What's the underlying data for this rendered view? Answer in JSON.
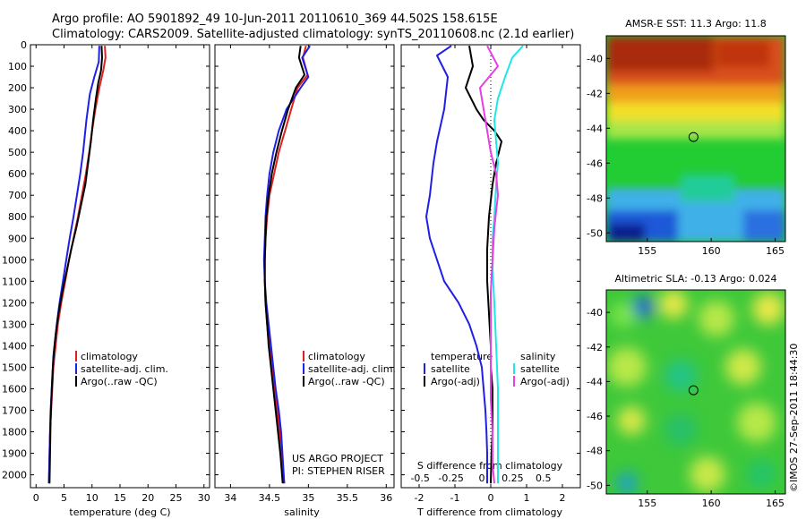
{
  "header": {
    "line1": "Argo profile: AO 5901892_49 10-Jun-2011 20110610_369 44.502S 158.615E",
    "line2": "Climatology: CARS2009. Satellite-adjusted climatology: synTS_20110608.nc (2.1d earlier)"
  },
  "project": {
    "line1": "US ARGO PROJECT",
    "line2": "PI: STEPHEN RISER"
  },
  "stamp": "©IMOS 27-Sep-2011 18:44:30",
  "colors": {
    "climatology": "#e11f1f",
    "satellite": "#1f1fe6",
    "argo": "#000000",
    "sal_satellite": "#22e6e6",
    "sal_argo": "#e63fe6",
    "dotted": "#000000"
  },
  "chart_data": [
    {
      "id": "temperature",
      "type": "line",
      "xlabel": "temperature (deg C)",
      "ylabel": "",
      "xlim": [
        -1,
        31
      ],
      "ylim": [
        2060,
        0
      ],
      "y_reversed": true,
      "xticks": [
        0,
        5,
        10,
        15,
        20,
        25,
        30
      ],
      "yticks": [
        0,
        100,
        200,
        300,
        400,
        500,
        600,
        700,
        800,
        900,
        1000,
        1100,
        1200,
        1300,
        1400,
        1500,
        1600,
        1700,
        1800,
        1900,
        2000
      ],
      "legend": [
        "climatology",
        "satellite-adj. clim.",
        "Argo(..raw -QC)"
      ],
      "legend_position": "lower-middle",
      "series": [
        {
          "name": "climatology",
          "color_key": "climatology",
          "x": [
            12.3,
            12.4,
            12.0,
            11.3,
            10.6,
            10.0,
            9.5,
            8.9,
            8.2,
            7.5,
            6.7,
            5.9,
            5.2,
            4.5,
            3.9,
            3.5,
            3.1,
            2.9,
            2.7,
            2.5,
            2.4,
            2.3
          ],
          "y": [
            5,
            60,
            120,
            200,
            300,
            400,
            500,
            600,
            700,
            800,
            900,
            1000,
            1100,
            1200,
            1300,
            1400,
            1500,
            1600,
            1700,
            1800,
            1900,
            2040
          ]
        },
        {
          "name": "satellite-adj. clim.",
          "color_key": "satellite",
          "x": [
            11.3,
            11.2,
            10.4,
            9.6,
            9.0,
            8.4,
            7.9,
            7.3,
            6.7,
            6.0,
            5.4,
            4.8,
            4.2,
            3.7,
            3.3,
            3.0,
            2.8,
            2.6,
            2.5,
            2.4,
            2.3
          ],
          "y": [
            5,
            80,
            150,
            230,
            350,
            500,
            600,
            700,
            800,
            900,
            1000,
            1100,
            1200,
            1300,
            1400,
            1500,
            1600,
            1700,
            1800,
            1900,
            2040
          ]
        },
        {
          "name": "Argo(..raw -QC)",
          "color_key": "argo",
          "x": [
            11.7,
            11.8,
            11.6,
            11.1,
            10.7,
            10.2,
            9.8,
            9.3,
            8.8,
            8.0,
            7.2,
            6.3,
            5.5,
            4.7,
            4.0,
            3.5,
            3.1,
            2.8,
            2.6,
            2.5,
            2.4
          ],
          "y": [
            5,
            60,
            120,
            180,
            250,
            350,
            450,
            550,
            650,
            750,
            850,
            950,
            1050,
            1150,
            1250,
            1350,
            1450,
            1600,
            1750,
            1900,
            2040
          ]
        }
      ]
    },
    {
      "id": "salinity",
      "type": "line",
      "xlabel": "salinity",
      "ylabel": "",
      "xlim": [
        33.8,
        36.1
      ],
      "ylim": [
        2060,
        0
      ],
      "y_reversed": true,
      "xticks": [
        34,
        34.5,
        35,
        35.5,
        36
      ],
      "legend": [
        "climatology",
        "satellite-adj. clim.",
        "Argo(..raw -QC)"
      ],
      "legend_position": "lower-middle",
      "series": [
        {
          "name": "climatology",
          "color_key": "climatology",
          "x": [
            34.97,
            34.93,
            34.99,
            34.86,
            34.78,
            34.7,
            34.62,
            34.56,
            34.5,
            34.47,
            34.45,
            34.44,
            34.44,
            34.45,
            34.47,
            34.5,
            34.53,
            34.57,
            34.6,
            34.63,
            34.66,
            34.69
          ],
          "y": [
            5,
            60,
            140,
            200,
            300,
            400,
            500,
            600,
            700,
            800,
            900,
            1000,
            1100,
            1200,
            1300,
            1400,
            1500,
            1600,
            1700,
            1800,
            1900,
            2040
          ]
        },
        {
          "name": "satellite-adj. clim.",
          "color_key": "satellite",
          "x": [
            35.02,
            34.92,
            35.0,
            34.9,
            34.72,
            34.62,
            34.55,
            34.5,
            34.47,
            34.45,
            34.44,
            34.43,
            34.44,
            34.46,
            34.49,
            34.52,
            34.55,
            34.58,
            34.62,
            34.65,
            34.69
          ],
          "y": [
            5,
            60,
            150,
            200,
            300,
            400,
            500,
            600,
            700,
            800,
            900,
            1000,
            1100,
            1200,
            1300,
            1400,
            1500,
            1600,
            1700,
            1800,
            2040
          ]
        },
        {
          "name": "Argo(..raw -QC)",
          "color_key": "argo",
          "x": [
            34.9,
            34.88,
            34.95,
            34.84,
            34.74,
            34.66,
            34.59,
            34.53,
            34.49,
            34.46,
            34.45,
            34.44,
            34.44,
            34.45,
            34.47,
            34.49,
            34.52,
            34.55,
            34.58,
            34.61,
            34.64,
            34.67
          ],
          "y": [
            5,
            60,
            140,
            200,
            300,
            400,
            500,
            600,
            700,
            800,
            900,
            1000,
            1100,
            1200,
            1300,
            1400,
            1500,
            1600,
            1700,
            1800,
            1900,
            2040
          ]
        }
      ]
    },
    {
      "id": "difference",
      "type": "line",
      "xlabel": "T difference from climatology",
      "xlabel_top": "S difference from climatology",
      "xlim": [
        -2.5,
        2.5
      ],
      "ylim": [
        2060,
        0
      ],
      "y_reversed": true,
      "xticks": [
        -2,
        -1,
        0,
        1,
        2
      ],
      "xticks_top": [
        -0.5,
        -0.25,
        0,
        0.25,
        0.5
      ],
      "legend_temperature_title": "temperature",
      "legend_salinity_title": "salinity",
      "legend": [
        "satellite",
        "Argo(-adj)",
        "satellite",
        "Argo(-adj)"
      ],
      "legend_position": "lower-middle",
      "series": [
        {
          "name": "satellite",
          "group": "temperature",
          "color_key": "satellite",
          "x": [
            -1.1,
            -1.5,
            -1.2,
            -1.3,
            -1.5,
            -1.6,
            -1.7,
            -1.8,
            -1.7,
            -1.5,
            -1.3,
            -0.9,
            -0.6,
            -0.4,
            -0.25,
            -0.2,
            -0.15,
            -0.12,
            -0.1,
            -0.1,
            -0.1
          ],
          "y": [
            5,
            50,
            150,
            300,
            450,
            550,
            700,
            800,
            900,
            1000,
            1100,
            1200,
            1300,
            1400,
            1500,
            1600,
            1700,
            1800,
            1900,
            2000,
            2040
          ]
        },
        {
          "name": "Argo(-adj)",
          "group": "temperature",
          "color_key": "argo",
          "x": [
            -0.6,
            -0.5,
            -0.7,
            -0.4,
            -0.2,
            0.1,
            0.3,
            0.15,
            0.05,
            -0.05,
            -0.1,
            -0.1,
            -0.05,
            0.0,
            0.0,
            0.05,
            0.05,
            0.05,
            0.02,
            0.0
          ],
          "y": [
            5,
            100,
            200,
            300,
            350,
            400,
            450,
            550,
            650,
            800,
            950,
            1100,
            1250,
            1400,
            1500,
            1600,
            1700,
            1800,
            1900,
            2040
          ]
        },
        {
          "name": "satellite",
          "group": "salinity",
          "color_key": "sal_satellite",
          "x": [
            0.9,
            0.6,
            0.4,
            0.2,
            0.1,
            0.15,
            0.2,
            0.15,
            0.1,
            0.05,
            0.05,
            0.1,
            0.15,
            0.2,
            0.2,
            0.2,
            0.2,
            0.2
          ],
          "y": [
            5,
            60,
            150,
            250,
            350,
            450,
            550,
            650,
            800,
            900,
            1050,
            1200,
            1400,
            1600,
            1750,
            1900,
            2000,
            2040
          ]
        },
        {
          "name": "Argo(-adj)",
          "group": "salinity",
          "color_key": "sal_argo",
          "x": [
            -0.1,
            0.2,
            -0.3,
            -0.2,
            -0.1,
            0.0,
            0.15,
            0.2,
            0.1,
            0.05,
            0.0,
            0.0,
            0.0,
            0.0,
            0.05,
            0.05,
            0.1
          ],
          "y": [
            5,
            100,
            200,
            300,
            400,
            500,
            600,
            700,
            850,
            1000,
            1150,
            1300,
            1500,
            1650,
            1800,
            1950,
            2040
          ]
        }
      ]
    },
    {
      "id": "sst_map",
      "type": "heatmap",
      "title": "AMSR-E SST: 11.3 Argo: 11.8",
      "xlim": [
        151.8,
        165.8
      ],
      "ylim": [
        -50.5,
        -38.7
      ],
      "xticks": [
        155,
        160,
        165
      ],
      "yticks": [
        -40,
        -42,
        -44,
        -46,
        -48,
        -50
      ],
      "marker": {
        "lon": 158.615,
        "lat": -44.502
      }
    },
    {
      "id": "sla_map",
      "type": "heatmap",
      "title": "Altimetric SLA: -0.13 Argo: 0.024",
      "xlim": [
        151.8,
        165.8
      ],
      "ylim": [
        -50.5,
        -38.7
      ],
      "xticks": [
        155,
        160,
        165
      ],
      "yticks": [
        -40,
        -42,
        -44,
        -46,
        -48,
        -50
      ],
      "marker": {
        "lon": 158.615,
        "lat": -44.502
      }
    }
  ]
}
